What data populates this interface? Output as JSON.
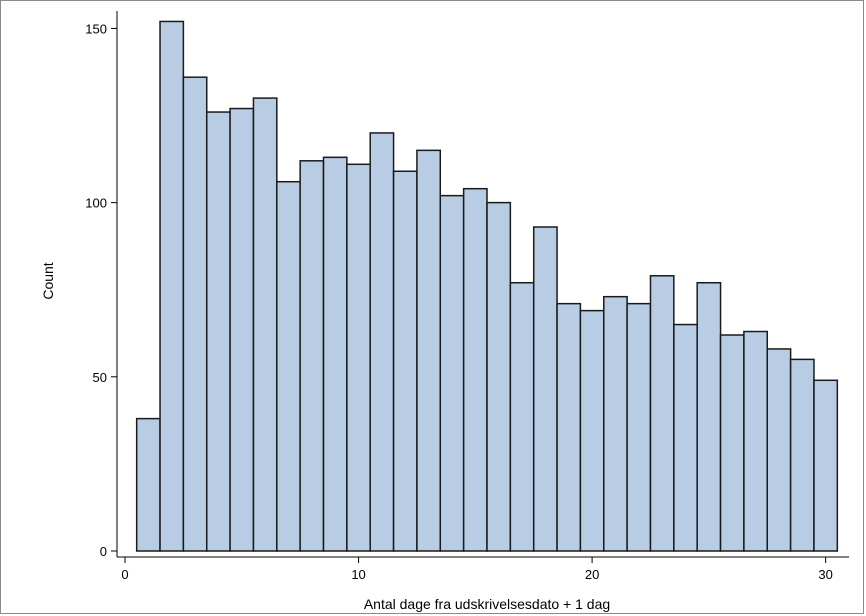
{
  "chart_data": {
    "type": "bar",
    "title": "",
    "xlabel": "Antal dage fra udskrivelsesdato + 1 dag",
    "ylabel": "Count",
    "xlim": [
      0,
      31
    ],
    "ylim": [
      0,
      155
    ],
    "xticks": [
      0,
      10,
      20,
      30
    ],
    "yticks": [
      0,
      50,
      100,
      150
    ],
    "x": [
      1,
      2,
      3,
      4,
      5,
      6,
      7,
      8,
      9,
      10,
      11,
      12,
      13,
      14,
      15,
      16,
      17,
      18,
      19,
      20,
      21,
      22,
      23,
      24,
      25,
      26,
      27,
      28,
      29,
      30
    ],
    "values": [
      38,
      152,
      136,
      126,
      127,
      130,
      106,
      112,
      113,
      111,
      120,
      109,
      115,
      102,
      104,
      100,
      77,
      93,
      71,
      69,
      73,
      71,
      79,
      65,
      77,
      62,
      63,
      58,
      55,
      49
    ],
    "bar_color": "#b8cce4",
    "grid": false
  }
}
